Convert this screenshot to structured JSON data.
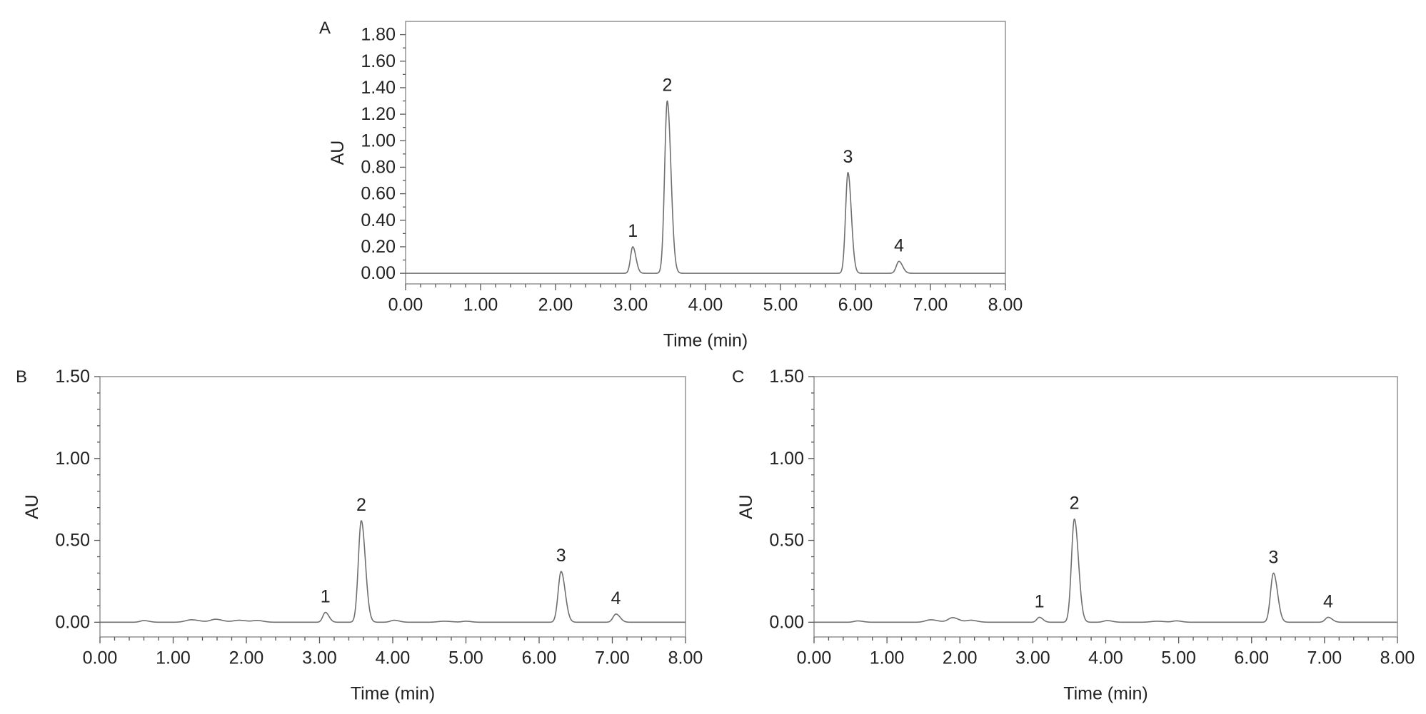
{
  "chart_data": [
    {
      "type": "line",
      "panel": "A",
      "xlabel": "Time (min)",
      "ylabel": "AU",
      "xlim": [
        0,
        8
      ],
      "ylim": [
        -0.08,
        1.9
      ],
      "x_ticks": [
        "0.00",
        "1.00",
        "2.00",
        "3.00",
        "4.00",
        "5.00",
        "6.00",
        "7.00",
        "8.00"
      ],
      "y_ticks": [
        "0.00",
        "0.20",
        "0.40",
        "0.60",
        "0.80",
        "1.00",
        "1.20",
        "1.40",
        "1.60",
        "1.80"
      ],
      "baseline": 0.0,
      "peaks": [
        {
          "label": "1",
          "x": 3.03,
          "y": 0.2,
          "width": 0.03
        },
        {
          "label": "2",
          "x": 3.49,
          "y": 1.3,
          "width": 0.035
        },
        {
          "label": "3",
          "x": 5.9,
          "y": 0.76,
          "width": 0.032
        },
        {
          "label": "4",
          "x": 6.58,
          "y": 0.09,
          "width": 0.035
        }
      ],
      "bumps": []
    },
    {
      "type": "line",
      "panel": "B",
      "xlabel": "Time (min)",
      "ylabel": "AU",
      "xlim": [
        0,
        8
      ],
      "ylim": [
        -0.09,
        1.5
      ],
      "x_ticks": [
        "0.00",
        "1.00",
        "2.00",
        "3.00",
        "4.00",
        "5.00",
        "6.00",
        "7.00",
        "8.00"
      ],
      "y_ticks": [
        "0.00",
        "0.50",
        "1.00",
        "1.50"
      ],
      "baseline": 0.0,
      "peaks": [
        {
          "label": "1",
          "x": 3.08,
          "y": 0.06,
          "width": 0.035
        },
        {
          "label": "2",
          "x": 3.57,
          "y": 0.62,
          "width": 0.04
        },
        {
          "label": "3",
          "x": 6.3,
          "y": 0.31,
          "width": 0.04
        },
        {
          "label": "4",
          "x": 7.05,
          "y": 0.05,
          "width": 0.04
        }
      ],
      "bumps": [
        {
          "x": 0.6,
          "y": 0.01,
          "width": 0.05
        },
        {
          "x": 1.25,
          "y": 0.015,
          "width": 0.08
        },
        {
          "x": 1.58,
          "y": 0.018,
          "width": 0.07
        },
        {
          "x": 1.9,
          "y": 0.012,
          "width": 0.08
        },
        {
          "x": 2.15,
          "y": 0.01,
          "width": 0.06
        },
        {
          "x": 4.02,
          "y": 0.012,
          "width": 0.05
        },
        {
          "x": 4.7,
          "y": 0.006,
          "width": 0.08
        },
        {
          "x": 5.0,
          "y": 0.006,
          "width": 0.05
        }
      ]
    },
    {
      "type": "line",
      "panel": "C",
      "xlabel": "Time (min)",
      "ylabel": "AU",
      "xlim": [
        0,
        8
      ],
      "ylim": [
        -0.09,
        1.5
      ],
      "x_ticks": [
        "0.00",
        "1.00",
        "2.00",
        "3.00",
        "4.00",
        "5.00",
        "6.00",
        "7.00",
        "8.00"
      ],
      "y_ticks": [
        "0.00",
        "0.50",
        "1.00",
        "1.50"
      ],
      "baseline": 0.0,
      "peaks": [
        {
          "label": "1",
          "x": 3.09,
          "y": 0.03,
          "width": 0.035
        },
        {
          "label": "2",
          "x": 3.57,
          "y": 0.63,
          "width": 0.04
        },
        {
          "label": "3",
          "x": 6.3,
          "y": 0.3,
          "width": 0.04
        },
        {
          "label": "4",
          "x": 7.05,
          "y": 0.03,
          "width": 0.04
        }
      ],
      "bumps": [
        {
          "x": 0.6,
          "y": 0.008,
          "width": 0.05
        },
        {
          "x": 1.6,
          "y": 0.015,
          "width": 0.07
        },
        {
          "x": 1.9,
          "y": 0.028,
          "width": 0.06
        },
        {
          "x": 2.15,
          "y": 0.012,
          "width": 0.06
        },
        {
          "x": 4.02,
          "y": 0.01,
          "width": 0.05
        },
        {
          "x": 4.7,
          "y": 0.006,
          "width": 0.08
        },
        {
          "x": 4.97,
          "y": 0.008,
          "width": 0.05
        }
      ]
    }
  ]
}
